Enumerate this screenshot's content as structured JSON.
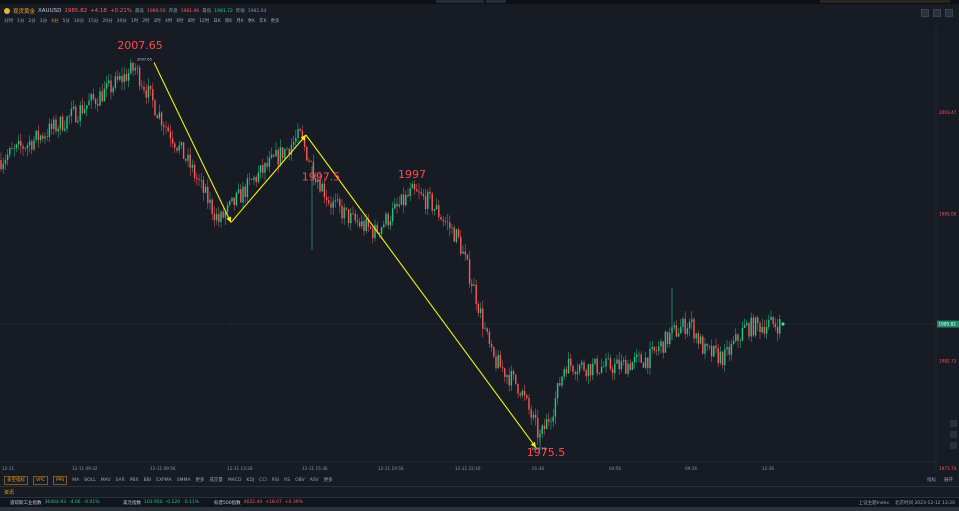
{
  "header": {
    "instrument_name": "现货黄金",
    "symbol": "XAUUSD",
    "price": "1985.82",
    "change": "+4.18",
    "change_pct": "+0.21%",
    "high_label": "最高",
    "high_value": "1989.56",
    "open_label": "开盘",
    "open_value": "1981.96",
    "low_label": "最低",
    "low_value": "1981.72",
    "prev_close_label": "昨收",
    "prev_close_value": "1981.64"
  },
  "periods": [
    "分时",
    "1分",
    "2分",
    "3分",
    "4分",
    "5分",
    "10分",
    "15分",
    "20分",
    "30分",
    "1时",
    "2时",
    "3时",
    "4时",
    "6时",
    "8时",
    "12时",
    "日K",
    "周K",
    "月K",
    "季K",
    "年K",
    "更多"
  ],
  "active_period": "4分",
  "chart_data": {
    "type": "candlestick",
    "y_axis_ticks": [
      "2012.04",
      "2003.47",
      "1995.00",
      "1985.82",
      "1982.73",
      "1973.74"
    ],
    "current_price_tag": "1985.82",
    "x_axis_ticks": [
      "12-11",
      "12-11 09:32",
      "12-11 09:56",
      "12-11 13:28",
      "12-11 15:36",
      "12-11 19:56",
      "12-11 22:16",
      "01:36",
      "04:56",
      "09:16",
      "12:36"
    ],
    "annotations": [
      "2007.65",
      "1997.5",
      "1997",
      "1975.5"
    ],
    "peak_marker": "2007.65",
    "trough_marker": "1975.73",
    "drawn_lines": [
      {
        "from": [
          "12-11 09:56",
          2007.65
        ],
        "to": [
          "12-11 13:28",
          1994.3
        ]
      },
      {
        "from": [
          "12-11 13:28",
          1994.3
        ],
        "to": [
          "12-11 15:36",
          2001.6
        ]
      },
      {
        "from": [
          "12-11 15:36",
          2001.6
        ],
        "to": [
          "01:36",
          1975.5
        ]
      }
    ],
    "up_color": "#1fc98a",
    "down_color": "#ff5a5a",
    "line_color": "#f2f200",
    "grid": true
  },
  "indicator_bar": {
    "tags": [
      "多空指标",
      "VPC",
      "PPS"
    ],
    "indicators": [
      "MA",
      "BOLL",
      "MAV",
      "SAR",
      "PBX",
      "BBI",
      "EXPMA",
      "SMMA",
      "更多",
      "成交量",
      "MACD",
      "KDJ",
      "CCI",
      "RSI",
      "RS",
      "OBV",
      "ASV",
      "更多"
    ],
    "right": [
      "指标",
      "展开"
    ]
  },
  "panel": {
    "title": "资讯"
  },
  "status_indices": [
    {
      "name": "道琼斯工业指数",
      "value": "36404.93",
      "change": "-4.06",
      "pct": "-0.01%"
    },
    {
      "name": "美元指数",
      "value": "103.950",
      "change": "-0.120",
      "pct": "-0.11%"
    },
    {
      "name": "标普500指数",
      "value": "4622.44",
      "change": "+18.07",
      "pct": "+0.39%"
    }
  ],
  "status_right": [
    "上证主题Index",
    "北京时间 2023-12-12 13:20"
  ]
}
